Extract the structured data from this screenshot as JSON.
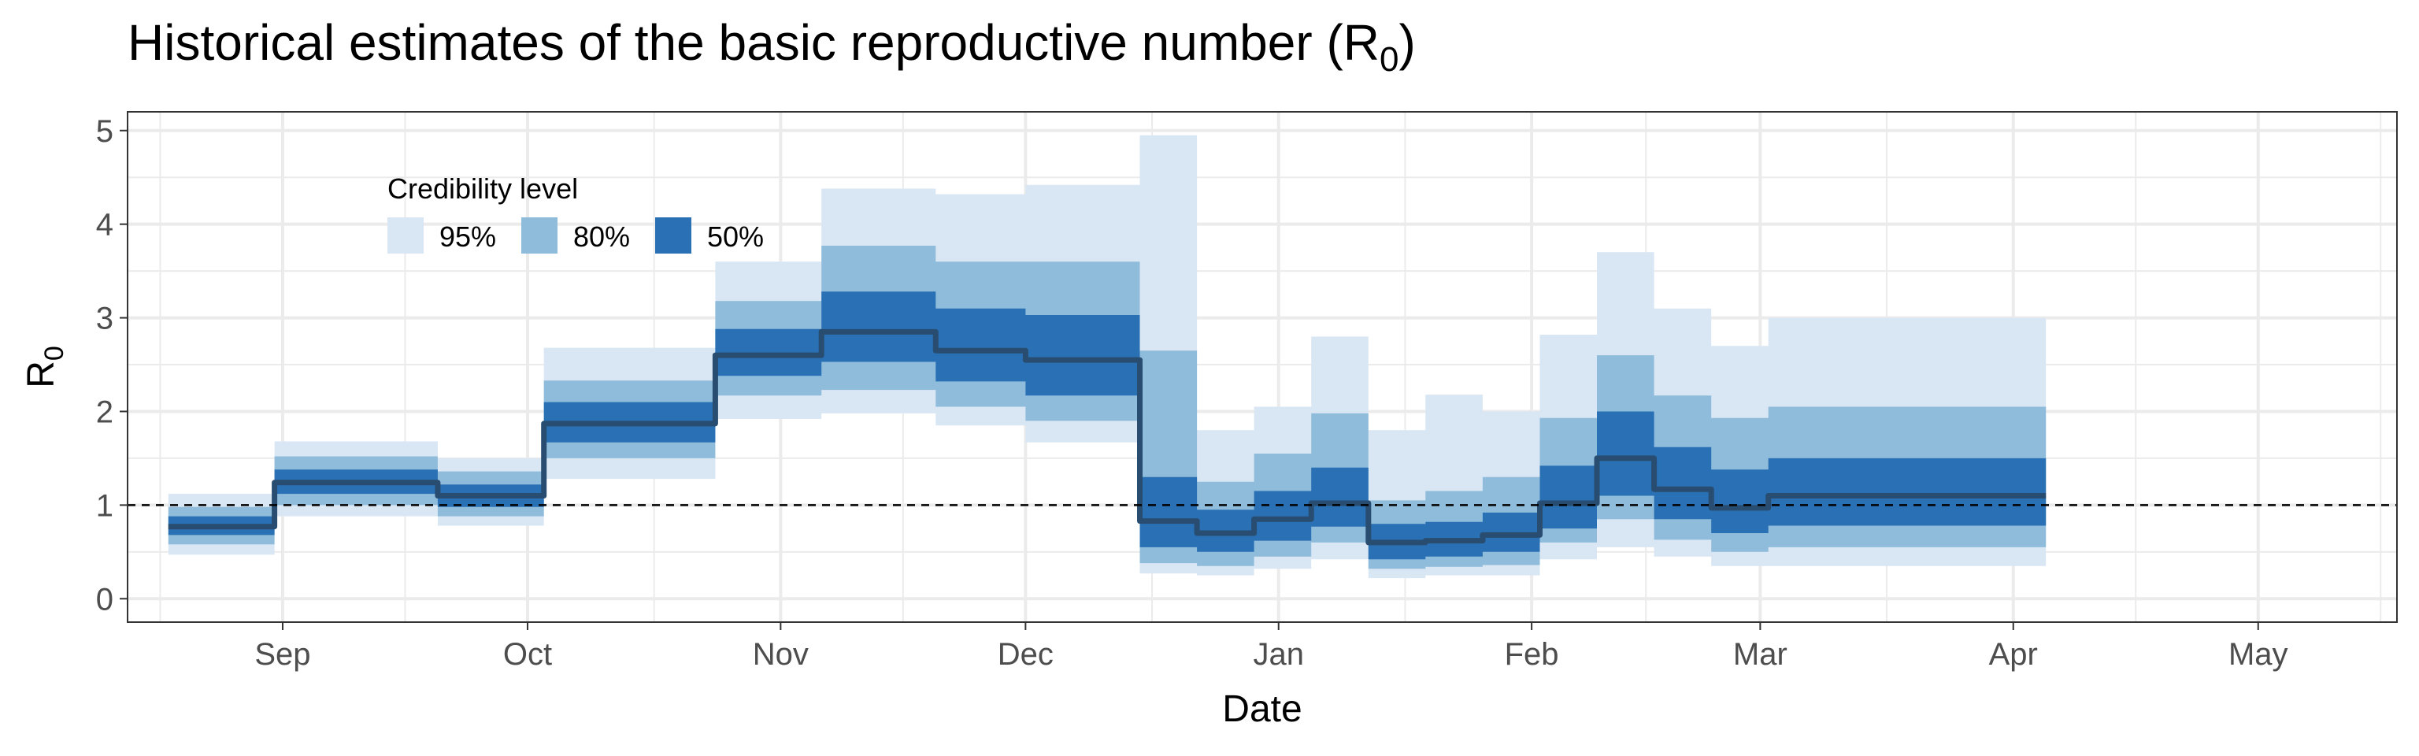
{
  "chart_data": {
    "type": "area",
    "title": "Historical estimates of the basic reproductive number (R",
    "title_subscript": "0",
    "title_suffix": ")",
    "xlabel": "Date",
    "ylabel": "R",
    "ylabel_subscript": "0",
    "ylim": [
      -0.25,
      5.2
    ],
    "xlim": [
      "2022-08-13",
      "2023-05-18"
    ],
    "yticks": [
      0,
      1,
      2,
      3,
      4,
      5
    ],
    "xticks": [
      {
        "date": "2022-09-01",
        "label": "Sep"
      },
      {
        "date": "2022-10-01",
        "label": "Oct"
      },
      {
        "date": "2022-11-01",
        "label": "Nov"
      },
      {
        "date": "2022-12-01",
        "label": "Dec"
      },
      {
        "date": "2023-01-01",
        "label": "Jan"
      },
      {
        "date": "2023-02-01",
        "label": "Feb"
      },
      {
        "date": "2023-03-01",
        "label": "Mar"
      },
      {
        "date": "2023-04-01",
        "label": "Apr"
      },
      {
        "date": "2023-05-01",
        "label": "May"
      }
    ],
    "grid": true,
    "reference_line": {
      "y": 1,
      "style": "dashed"
    },
    "legend": {
      "title": "Credibility level",
      "placement": "top-left",
      "entries": [
        {
          "label": "95%",
          "color": "#d9e6f4"
        },
        {
          "label": "80%",
          "color": "#8fbcdb"
        },
        {
          "label": "50%",
          "color": "#2a70b4"
        }
      ]
    },
    "colors": {
      "median": "#284d70",
      "reference": "#000000",
      "band95": "#d9e6f4",
      "band80": "#8fbcdb",
      "band50": "#2a70b4"
    },
    "series": [
      {
        "start": "2022-08-18",
        "end": "2022-08-31",
        "median": 0.77,
        "lo50": 0.68,
        "hi50": 0.88,
        "lo80": 0.58,
        "hi80": 0.98,
        "lo95": 0.47,
        "hi95": 1.12
      },
      {
        "start": "2022-08-31",
        "end": "2022-09-20",
        "median": 1.24,
        "lo50": 1.12,
        "hi50": 1.38,
        "lo80": 1.0,
        "hi80": 1.52,
        "lo95": 0.88,
        "hi95": 1.68
      },
      {
        "start": "2022-09-20",
        "end": "2022-10-03",
        "median": 1.1,
        "lo50": 0.98,
        "hi50": 1.22,
        "lo80": 0.88,
        "hi80": 1.36,
        "lo95": 0.78,
        "hi95": 1.5
      },
      {
        "start": "2022-10-03",
        "end": "2022-10-24",
        "median": 1.87,
        "lo50": 1.67,
        "hi50": 2.1,
        "lo80": 1.5,
        "hi80": 2.33,
        "lo95": 1.28,
        "hi95": 2.68
      },
      {
        "start": "2022-10-24",
        "end": "2022-11-06",
        "median": 2.6,
        "lo50": 2.38,
        "hi50": 2.88,
        "lo80": 2.17,
        "hi80": 3.18,
        "lo95": 1.92,
        "hi95": 3.6
      },
      {
        "start": "2022-11-06",
        "end": "2022-11-20",
        "median": 2.85,
        "lo50": 2.53,
        "hi50": 3.28,
        "lo80": 2.23,
        "hi80": 3.77,
        "lo95": 1.98,
        "hi95": 4.38
      },
      {
        "start": "2022-11-20",
        "end": "2022-12-01",
        "median": 2.65,
        "lo50": 2.32,
        "hi50": 3.1,
        "lo80": 2.05,
        "hi80": 3.6,
        "lo95": 1.85,
        "hi95": 4.32
      },
      {
        "start": "2022-12-01",
        "end": "2022-12-15",
        "median": 2.55,
        "lo50": 2.17,
        "hi50": 3.03,
        "lo80": 1.9,
        "hi80": 3.6,
        "lo95": 1.67,
        "hi95": 4.42
      },
      {
        "start": "2022-12-15",
        "end": "2022-12-22",
        "median": 0.83,
        "lo50": 0.55,
        "hi50": 1.3,
        "lo80": 0.38,
        "hi80": 2.65,
        "lo95": 0.27,
        "hi95": 4.95
      },
      {
        "start": "2022-12-22",
        "end": "2022-12-29",
        "median": 0.7,
        "lo50": 0.5,
        "hi50": 0.95,
        "lo80": 0.35,
        "hi80": 1.25,
        "lo95": 0.25,
        "hi95": 1.8
      },
      {
        "start": "2022-12-29",
        "end": "2023-01-05",
        "median": 0.85,
        "lo50": 0.62,
        "hi50": 1.15,
        "lo80": 0.45,
        "hi80": 1.55,
        "lo95": 0.32,
        "hi95": 2.05
      },
      {
        "start": "2023-01-05",
        "end": "2023-01-12",
        "median": 1.02,
        "lo50": 0.77,
        "hi50": 1.4,
        "lo80": 0.6,
        "hi80": 1.98,
        "lo95": 0.42,
        "hi95": 2.8
      },
      {
        "start": "2023-01-12",
        "end": "2023-01-19",
        "median": 0.6,
        "lo50": 0.42,
        "hi50": 0.8,
        "lo80": 0.32,
        "hi80": 1.05,
        "lo95": 0.22,
        "hi95": 1.8
      },
      {
        "start": "2023-01-19",
        "end": "2023-01-26",
        "median": 0.62,
        "lo50": 0.45,
        "hi50": 0.82,
        "lo80": 0.34,
        "hi80": 1.15,
        "lo95": 0.25,
        "hi95": 2.18
      },
      {
        "start": "2023-01-26",
        "end": "2023-02-02",
        "median": 0.68,
        "lo50": 0.5,
        "hi50": 0.92,
        "lo80": 0.36,
        "hi80": 1.3,
        "lo95": 0.25,
        "hi95": 2.0
      },
      {
        "start": "2023-02-02",
        "end": "2023-02-09",
        "median": 1.02,
        "lo50": 0.75,
        "hi50": 1.42,
        "lo80": 0.6,
        "hi80": 1.93,
        "lo95": 0.42,
        "hi95": 2.82
      },
      {
        "start": "2023-02-09",
        "end": "2023-02-16",
        "median": 1.5,
        "lo50": 1.1,
        "hi50": 2.0,
        "lo80": 0.85,
        "hi80": 2.6,
        "lo95": 0.55,
        "hi95": 3.7
      },
      {
        "start": "2023-02-16",
        "end": "2023-02-23",
        "median": 1.17,
        "lo50": 0.85,
        "hi50": 1.62,
        "lo80": 0.63,
        "hi80": 2.17,
        "lo95": 0.45,
        "hi95": 3.1
      },
      {
        "start": "2023-02-23",
        "end": "2023-03-02",
        "median": 0.97,
        "lo50": 0.7,
        "hi50": 1.38,
        "lo80": 0.5,
        "hi80": 1.93,
        "lo95": 0.35,
        "hi95": 2.7
      },
      {
        "start": "2023-03-02",
        "end": "2023-04-05",
        "median": 1.1,
        "lo50": 0.78,
        "hi50": 1.5,
        "lo80": 0.55,
        "hi80": 2.05,
        "lo95": 0.35,
        "hi95": 3.0
      }
    ]
  }
}
